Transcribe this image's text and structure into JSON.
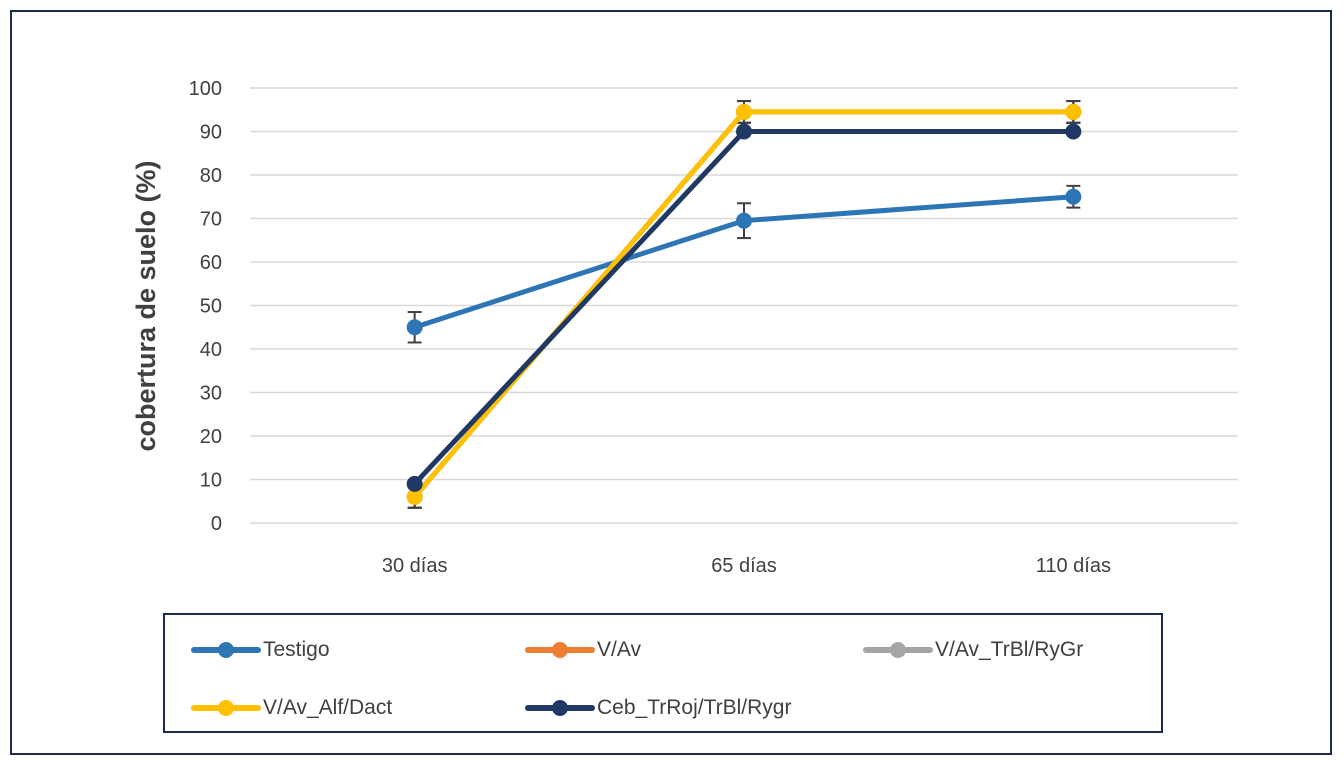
{
  "chart_data": {
    "type": "line",
    "categories": [
      "30 días",
      "65 días",
      "110 días"
    ],
    "ylabel": "cobertura de suelo (%)",
    "xlabel": "",
    "ylim": [
      0,
      100
    ],
    "yticks": [
      "0",
      "10",
      "20",
      "30",
      "40",
      "50",
      "60",
      "70",
      "80",
      "90",
      "100"
    ],
    "grid": true,
    "legend_position": "bottom",
    "series": [
      {
        "name": "Testigo",
        "color": "#2e75b6",
        "values": [
          45,
          69.5,
          75
        ],
        "error": [
          3.5,
          4,
          2.5
        ]
      },
      {
        "name": "V/Av",
        "color": "#ed7d31",
        "values": [
          6,
          94.5,
          94.5
        ],
        "error": [
          2.5,
          2.5,
          2.5
        ]
      },
      {
        "name": "V/Av_TrBl/RyGr",
        "color": "#a5a5a5",
        "values": [
          6,
          94.5,
          94.5
        ],
        "error": [
          2.5,
          2.5,
          2.5
        ]
      },
      {
        "name": "V/Av_Alf/Dact",
        "color": "#ffc000",
        "values": [
          6,
          94.5,
          94.5
        ],
        "error": [
          2.5,
          2.5,
          2.5
        ]
      },
      {
        "name": "Ceb_TrRoj/TrBl/Rygr",
        "color": "#1f3864",
        "values": [
          9,
          90,
          90
        ],
        "error": [
          0,
          0,
          0
        ]
      }
    ]
  }
}
